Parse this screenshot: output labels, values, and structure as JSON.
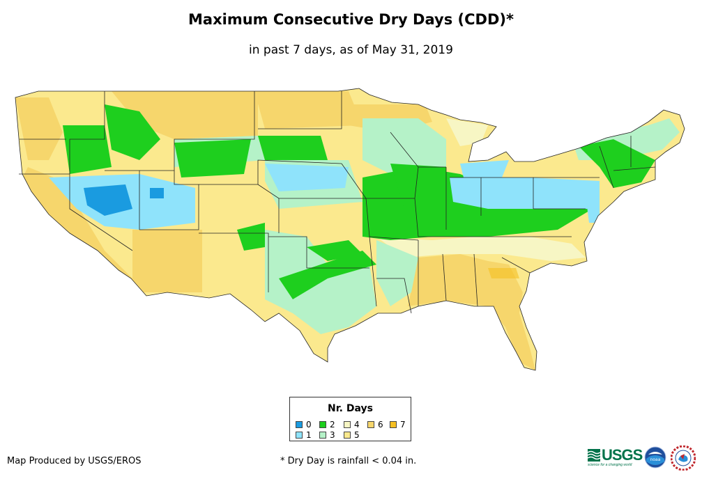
{
  "header": {
    "title": "Maximum Consecutive Dry Days (CDD)*",
    "subtitle": "in past 7 days, as of May 31, 2019"
  },
  "legend": {
    "title": "Nr. Days",
    "items": [
      {
        "label": "0",
        "color": "#1a9be0"
      },
      {
        "label": "1",
        "color": "#8fe3fb"
      },
      {
        "label": "2",
        "color": "#1ecf1e"
      },
      {
        "label": "3",
        "color": "#b5f2c8"
      },
      {
        "label": "4",
        "color": "#f7f6c4"
      },
      {
        "label": "5",
        "color": "#fbe98e"
      },
      {
        "label": "6",
        "color": "#f6d66c"
      },
      {
        "label": "7",
        "color": "#f5bf22"
      }
    ]
  },
  "footer": {
    "credit": "Map Produced by USGS/EROS",
    "note": "* Dry Day is rainfall < 0.04 in."
  },
  "logos": {
    "usgs_text": "USGS",
    "usgs_tagline": "science for a changing world",
    "noaa_text": "noaa"
  }
}
